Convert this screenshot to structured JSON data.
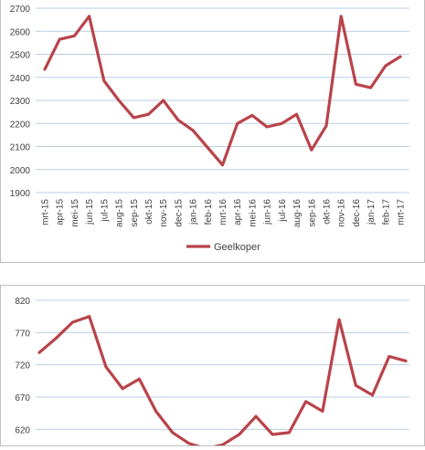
{
  "colors": {
    "series": "#b8444a",
    "grid": "#b9cfe4",
    "text": "#404040"
  },
  "chart_data": [
    {
      "type": "line",
      "categories": [
        "mrt-15",
        "apr-15",
        "mei-15",
        "jun-15",
        "jul-15",
        "aug-15",
        "sep-15",
        "okt-15",
        "nov-15",
        "dec-15",
        "jan-16",
        "feb-16",
        "mrt-16",
        "apr-16",
        "mei-16",
        "jun-16",
        "jul-16",
        "aug-16",
        "sep-16",
        "okt-16",
        "nov-16",
        "dec-16",
        "jan-17",
        "feb-17",
        "mrt-17"
      ],
      "series": [
        {
          "name": "Geelkoper",
          "values": [
            2435,
            2565,
            2580,
            2665,
            2385,
            2300,
            2225,
            2240,
            2300,
            2215,
            2170,
            2095,
            2020,
            2200,
            2235,
            2185,
            2200,
            2240,
            2085,
            2190,
            2665,
            2370,
            2355,
            2450,
            2490
          ]
        }
      ],
      "ylim": [
        1900,
        2700
      ],
      "yticks": [
        "1900",
        "2000",
        "2100",
        "2200",
        "2300",
        "2400",
        "2500",
        "2600",
        "2700"
      ],
      "grid": true,
      "legend": "bottom"
    },
    {
      "type": "line",
      "series": [
        {
          "values": [
            739,
            761,
            786,
            795,
            717,
            683,
            698,
            648,
            615,
            598,
            590,
            596,
            612,
            640,
            612,
            615,
            663,
            648,
            790,
            688,
            673,
            733,
            726
          ]
        }
      ],
      "ylim": [
        595,
        820
      ],
      "yticks": [
        "620",
        "670",
        "720",
        "770",
        "820"
      ],
      "grid": true
    }
  ]
}
